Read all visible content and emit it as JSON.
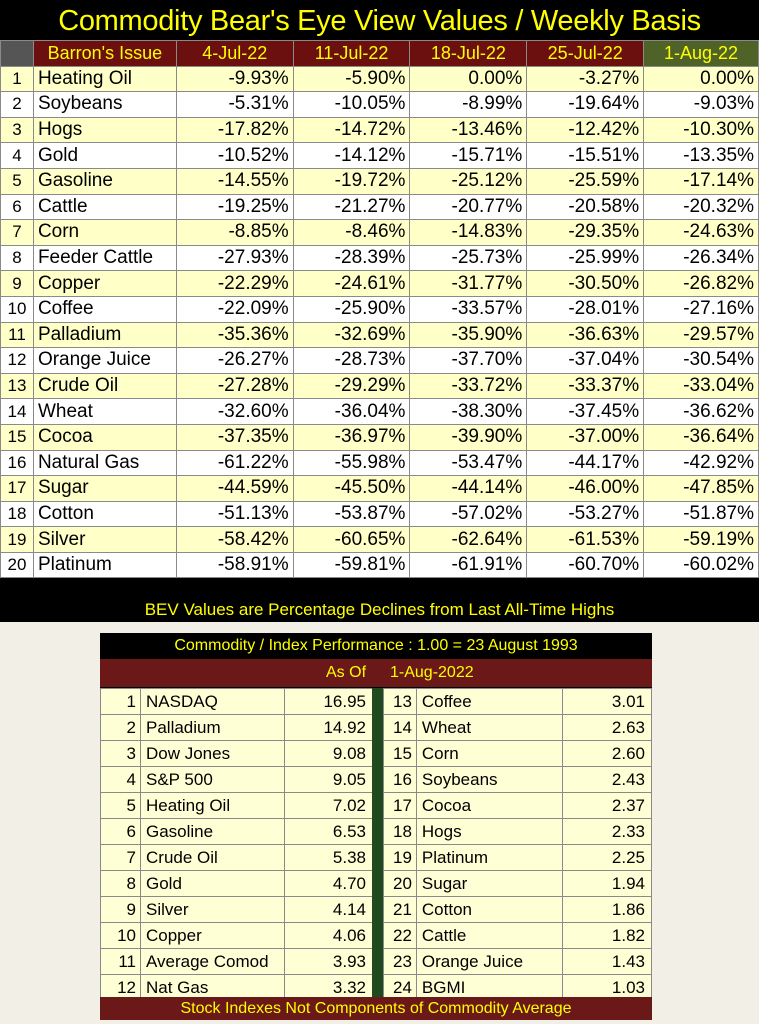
{
  "title": "Commodity Bear's Eye View Values / Weekly Basis",
  "bev": {
    "headers": [
      "Barron's Issue",
      "4-Jul-22",
      "11-Jul-22",
      "18-Jul-22",
      "25-Jul-22",
      "1-Aug-22"
    ],
    "rows": [
      {
        "n": "1",
        "name": "Heating Oil",
        "v": [
          "-9.93%",
          "-5.90%",
          "0.00%",
          "-3.27%",
          "0.00%"
        ]
      },
      {
        "n": "2",
        "name": "Soybeans",
        "v": [
          "-5.31%",
          "-10.05%",
          "-8.99%",
          "-19.64%",
          "-9.03%"
        ]
      },
      {
        "n": "3",
        "name": "Hogs",
        "v": [
          "-17.82%",
          "-14.72%",
          "-13.46%",
          "-12.42%",
          "-10.30%"
        ]
      },
      {
        "n": "4",
        "name": "Gold",
        "v": [
          "-10.52%",
          "-14.12%",
          "-15.71%",
          "-15.51%",
          "-13.35%"
        ]
      },
      {
        "n": "5",
        "name": "Gasoline",
        "v": [
          "-14.55%",
          "-19.72%",
          "-25.12%",
          "-25.59%",
          "-17.14%"
        ]
      },
      {
        "n": "6",
        "name": "Cattle",
        "v": [
          "-19.25%",
          "-21.27%",
          "-20.77%",
          "-20.58%",
          "-20.32%"
        ]
      },
      {
        "n": "7",
        "name": "Corn",
        "v": [
          "-8.85%",
          "-8.46%",
          "-14.83%",
          "-29.35%",
          "-24.63%"
        ]
      },
      {
        "n": "8",
        "name": "Feeder Cattle",
        "v": [
          "-27.93%",
          "-28.39%",
          "-25.73%",
          "-25.99%",
          "-26.34%"
        ]
      },
      {
        "n": "9",
        "name": "Copper",
        "v": [
          "-22.29%",
          "-24.61%",
          "-31.77%",
          "-30.50%",
          "-26.82%"
        ]
      },
      {
        "n": "10",
        "name": "Coffee",
        "v": [
          "-22.09%",
          "-25.90%",
          "-33.57%",
          "-28.01%",
          "-27.16%"
        ]
      },
      {
        "n": "11",
        "name": "Palladium",
        "v": [
          "-35.36%",
          "-32.69%",
          "-35.90%",
          "-36.63%",
          "-29.57%"
        ]
      },
      {
        "n": "12",
        "name": "Orange Juice",
        "v": [
          "-26.27%",
          "-28.73%",
          "-37.70%",
          "-37.04%",
          "-30.54%"
        ]
      },
      {
        "n": "13",
        "name": "Crude Oil",
        "v": [
          "-27.28%",
          "-29.29%",
          "-33.72%",
          "-33.37%",
          "-33.04%"
        ]
      },
      {
        "n": "14",
        "name": "Wheat",
        "v": [
          "-32.60%",
          "-36.04%",
          "-38.30%",
          "-37.45%",
          "-36.62%"
        ]
      },
      {
        "n": "15",
        "name": "Cocoa",
        "v": [
          "-37.35%",
          "-36.97%",
          "-39.90%",
          "-37.00%",
          "-36.64%"
        ]
      },
      {
        "n": "16",
        "name": "Natural Gas",
        "v": [
          "-61.22%",
          "-55.98%",
          "-53.47%",
          "-44.17%",
          "-42.92%"
        ]
      },
      {
        "n": "17",
        "name": "Sugar",
        "v": [
          "-44.59%",
          "-45.50%",
          "-44.14%",
          "-46.00%",
          "-47.85%"
        ]
      },
      {
        "n": "18",
        "name": "Cotton",
        "v": [
          "-51.13%",
          "-53.87%",
          "-57.02%",
          "-53.27%",
          "-51.87%"
        ]
      },
      {
        "n": "19",
        "name": "Silver",
        "v": [
          "-58.42%",
          "-60.65%",
          "-62.64%",
          "-61.53%",
          "-59.19%"
        ]
      },
      {
        "n": "20",
        "name": "Platinum",
        "v": [
          "-58.91%",
          "-59.81%",
          "-61.91%",
          "-60.70%",
          "-60.02%"
        ]
      }
    ],
    "footnote": "BEV Values are Percentage Declines from Last All-Time Highs"
  },
  "perf": {
    "title": "Commodity / Index Performance : 1.00 = 23 August 1993",
    "asof_label": "As Of",
    "asof_date": "1-Aug-2022",
    "left": [
      {
        "n": "1",
        "name": "NASDAQ",
        "v": "16.95"
      },
      {
        "n": "2",
        "name": "Palladium",
        "v": "14.92"
      },
      {
        "n": "3",
        "name": "Dow Jones",
        "v": "9.08"
      },
      {
        "n": "4",
        "name": "S&P 500",
        "v": "9.05"
      },
      {
        "n": "5",
        "name": "Heating Oil",
        "v": "7.02"
      },
      {
        "n": "6",
        "name": "Gasoline",
        "v": "6.53"
      },
      {
        "n": "7",
        "name": "Crude Oil",
        "v": "5.38"
      },
      {
        "n": "8",
        "name": "Gold",
        "v": "4.70"
      },
      {
        "n": "9",
        "name": "Silver",
        "v": "4.14"
      },
      {
        "n": "10",
        "name": "Copper",
        "v": "4.06"
      },
      {
        "n": "11",
        "name": "Average Comod",
        "v": "3.93"
      },
      {
        "n": "12",
        "name": "Nat Gas",
        "v": "3.32"
      }
    ],
    "right": [
      {
        "n": "13",
        "name": "Coffee",
        "v": "3.01"
      },
      {
        "n": "14",
        "name": "Wheat",
        "v": "2.63"
      },
      {
        "n": "15",
        "name": "Corn",
        "v": "2.60"
      },
      {
        "n": "16",
        "name": "Soybeans",
        "v": "2.43"
      },
      {
        "n": "17",
        "name": "Cocoa",
        "v": "2.37"
      },
      {
        "n": "18",
        "name": "Hogs",
        "v": "2.33"
      },
      {
        "n": "19",
        "name": "Platinum",
        "v": "2.25"
      },
      {
        "n": "20",
        "name": "Sugar",
        "v": "1.94"
      },
      {
        "n": "21",
        "name": "Cotton",
        "v": "1.86"
      },
      {
        "n": "22",
        "name": "Cattle",
        "v": "1.82"
      },
      {
        "n": "23",
        "name": "Orange Juice",
        "v": "1.43"
      },
      {
        "n": "24",
        "name": "BGMI",
        "v": "1.03"
      }
    ],
    "footnote": "Stock Indexes Not Components of Commodity Average"
  }
}
